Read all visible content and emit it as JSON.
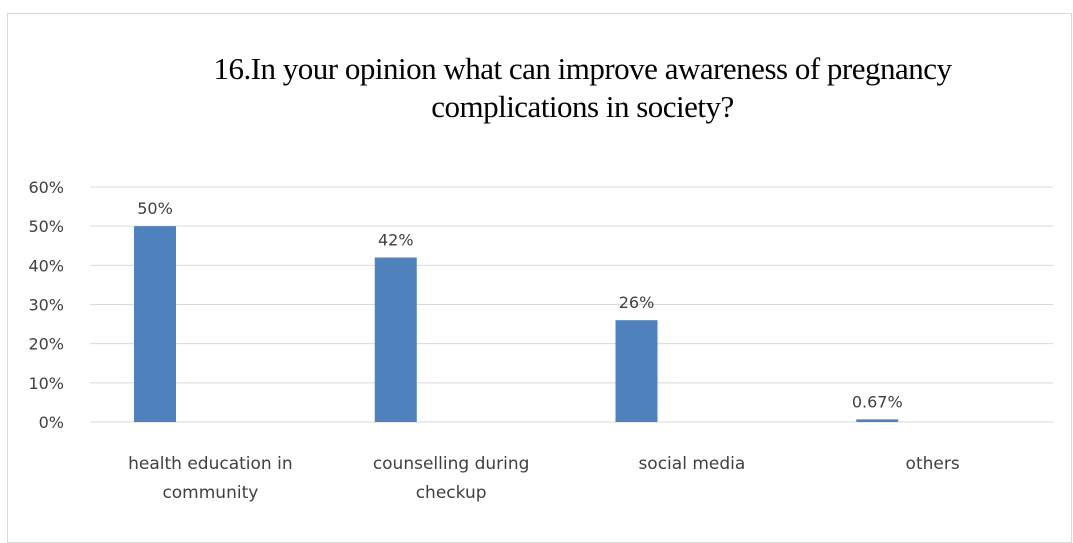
{
  "chart_data": {
    "type": "bar",
    "title_lines": [
      "16.In your opinion what can improve awareness of pregnancy",
      "complications in society?"
    ],
    "categories": [
      [
        "health education in",
        "community"
      ],
      [
        "counselling during",
        "checkup"
      ],
      [
        "social media"
      ],
      [
        "others"
      ]
    ],
    "values": [
      50,
      42,
      26,
      0.67
    ],
    "data_labels": [
      "50%",
      "42%",
      "26%",
      "0.67%"
    ],
    "y_ticks": [
      "0%",
      "10%",
      "20%",
      "30%",
      "40%",
      "50%",
      "60%"
    ],
    "ylim": [
      0,
      60
    ],
    "grid": true,
    "legend": "none",
    "bar_color": "#4f81bd",
    "grid_color": "#d9d9d9"
  }
}
